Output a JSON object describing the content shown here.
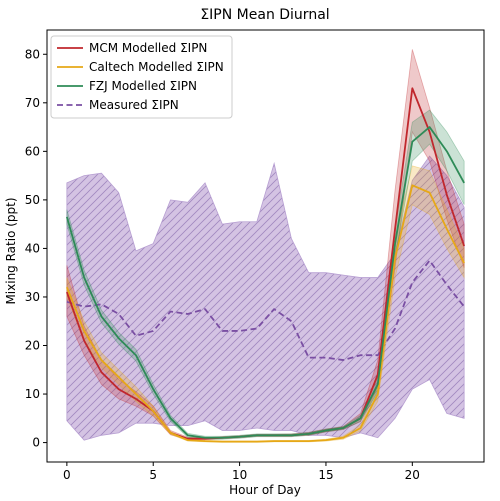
{
  "chart_data": {
    "type": "line",
    "title": "ΣIPN Mean Diurnal",
    "xlabel": "Hour of Day",
    "ylabel": "Mixing Ratio (ppt)",
    "xlim": [
      -1.15,
      24.15
    ],
    "ylim": [
      -4,
      85
    ],
    "xticks": [
      0,
      5,
      10,
      15,
      20
    ],
    "yticks": [
      0,
      10,
      20,
      30,
      40,
      50,
      60,
      70,
      80
    ],
    "grid": false,
    "legend_position": "top-left",
    "x": [
      0,
      1,
      2,
      3,
      4,
      5,
      6,
      7,
      8,
      9,
      10,
      11,
      12,
      13,
      14,
      15,
      16,
      17,
      18,
      19,
      20,
      21,
      22,
      23
    ],
    "series": [
      {
        "name": "MCM Modelled ΣIPN",
        "color": "#c0272d",
        "style": "solid",
        "values": [
          31,
          21,
          14.5,
          11,
          9,
          6.5,
          2,
          0.8,
          0.8,
          1,
          1.2,
          1.5,
          1.5,
          1.5,
          1.8,
          2.5,
          3,
          5,
          14,
          44,
          73,
          64,
          51,
          40.5
        ],
        "band_upper": [
          36.5,
          24,
          17,
          13,
          10.5,
          7.5,
          2.5,
          1.1,
          1,
          1.2,
          1.4,
          1.7,
          1.7,
          1.8,
          2.1,
          2.8,
          3.3,
          6,
          17,
          52,
          81,
          69,
          56,
          45
        ],
        "band_lower": [
          26,
          18,
          12,
          9,
          7.5,
          5.5,
          1.6,
          0.6,
          0.6,
          0.8,
          1,
          1.3,
          1.3,
          1.3,
          1.5,
          2.2,
          2.7,
          4.3,
          11.5,
          36,
          64,
          58,
          46,
          36
        ]
      },
      {
        "name": "Caltech Modelled ΣIPN",
        "color": "#e6a817",
        "style": "solid",
        "values": [
          32,
          23,
          17,
          13.5,
          10,
          6.5,
          2,
          0.5,
          0.3,
          0.2,
          0.2,
          0.2,
          0.3,
          0.3,
          0.3,
          0.5,
          1,
          3,
          10,
          38,
          53,
          51.5,
          44,
          37
        ],
        "band_upper": [
          34,
          25,
          18.5,
          15,
          11.5,
          7.5,
          2.3,
          0.7,
          0.45,
          0.35,
          0.35,
          0.35,
          0.45,
          0.45,
          0.45,
          0.7,
          1.3,
          3.6,
          11.5,
          42,
          57,
          56,
          48,
          40
        ],
        "band_lower": [
          30,
          21,
          15.5,
          12,
          8.5,
          5.5,
          1.7,
          0.3,
          0.15,
          0.05,
          0.05,
          0.05,
          0.15,
          0.15,
          0.15,
          0.3,
          0.7,
          2.4,
          8.5,
          34,
          49,
          47,
          40,
          34
        ]
      },
      {
        "name": "FZJ Modelled ΣIPN",
        "color": "#2e8b57",
        "style": "solid",
        "values": [
          46.5,
          34,
          26,
          21.5,
          18,
          11,
          5,
          1.5,
          1,
          1,
          1.2,
          1.5,
          1.5,
          1.5,
          1.8,
          2.5,
          3,
          5,
          12,
          41,
          62,
          65,
          60,
          53.5
        ],
        "band_upper": [
          48,
          35.5,
          27.3,
          22.7,
          19.2,
          12,
          5.6,
          1.9,
          1.3,
          1.3,
          1.5,
          1.8,
          1.8,
          1.8,
          2.1,
          2.8,
          3.3,
          5.6,
          13.5,
          44,
          66,
          68.5,
          64,
          58
        ],
        "band_lower": [
          45,
          32.5,
          24.7,
          20.3,
          16.8,
          10,
          4.4,
          1.1,
          0.7,
          0.7,
          0.9,
          1.2,
          1.2,
          1.2,
          1.5,
          2.2,
          2.7,
          4.4,
          10.5,
          38,
          58,
          61.5,
          56,
          49
        ]
      },
      {
        "name": "Measured ΣIPN",
        "color": "#7a4fa3",
        "style": "dashed",
        "values": [
          29,
          28,
          28.5,
          26.5,
          22,
          23,
          27,
          26.5,
          27.5,
          23,
          23,
          23.5,
          27.5,
          25,
          17.5,
          17.5,
          17,
          18,
          18,
          23.5,
          33,
          37.5,
          32.5,
          28
        ],
        "band_upper": [
          53.5,
          55,
          55.5,
          51.5,
          39.5,
          41,
          50,
          49.5,
          53.5,
          45,
          45.5,
          45.5,
          57.5,
          42,
          35,
          35,
          34.5,
          34,
          34,
          39,
          54,
          59,
          55,
          48.5
        ],
        "band_lower": [
          4.5,
          0.5,
          1.5,
          2,
          4,
          4,
          3.5,
          3.5,
          4.5,
          2.5,
          2.5,
          3,
          2.5,
          2.5,
          1.5,
          1.5,
          1,
          2,
          1,
          5,
          11,
          13,
          6,
          5
        ]
      }
    ]
  }
}
